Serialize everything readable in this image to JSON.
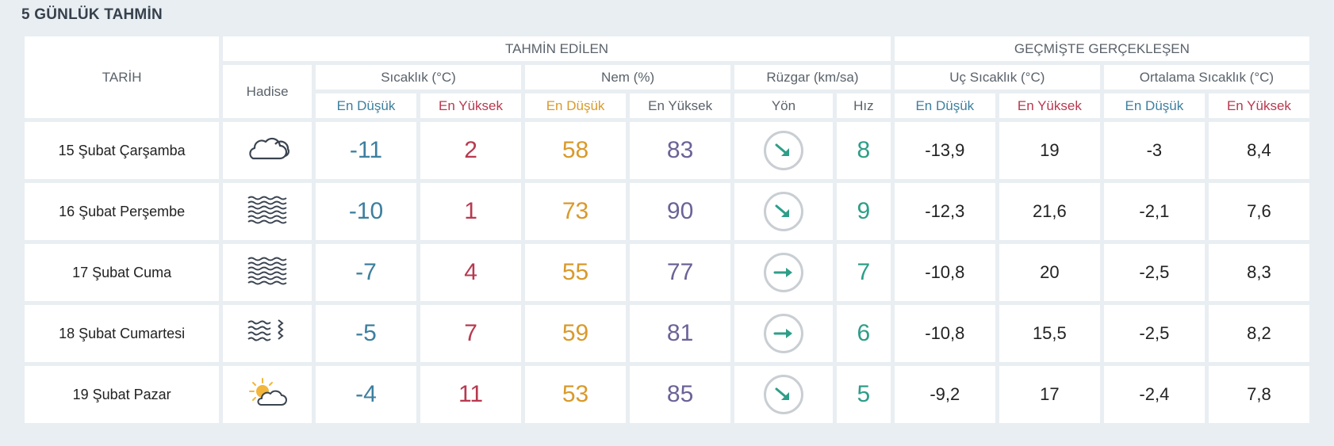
{
  "page_title": "5 GÜNLÜK TAHMİN",
  "headers": {
    "tarih": "TARİH",
    "hadise": "Hadise",
    "forecast_group": "TAHMİN EDİLEN",
    "past_group": "GEÇMİŞTE GERÇEKLEŞEN",
    "sicaklik": "Sıcaklık (°C)",
    "nem": "Nem (%)",
    "ruzgar": "Rüzgar (km/sa)",
    "uc_sicaklik": "Uç Sıcaklık (°C)",
    "ort_sicaklik": "Ortalama Sıcaklık (°C)",
    "en_dusuk": "En Düşük",
    "en_yuksek": "En Yüksek",
    "yon": "Yön",
    "hiz": "Hız"
  },
  "colors": {
    "min": "#3d7f9e",
    "max": "#b8394f",
    "hum_min": "#d99a2b",
    "hum_max": "#6b6397",
    "wind": "#2e9e89"
  },
  "rows": [
    {
      "date": "15 Şubat Çarşamba",
      "icon": "cloud-icon",
      "temp_min": "-11",
      "temp_max": "2",
      "hum_min": "58",
      "hum_max": "83",
      "wind_dir": "south-east-arrow",
      "wind_speed": "8",
      "extreme_min": "-13,9",
      "extreme_max": "19",
      "avg_min": "-3",
      "avg_max": "8,4"
    },
    {
      "date": "16 Şubat Perşembe",
      "icon": "fog-icon",
      "temp_min": "-10",
      "temp_max": "1",
      "hum_min": "73",
      "hum_max": "90",
      "wind_dir": "south-east-arrow",
      "wind_speed": "9",
      "extreme_min": "-12,3",
      "extreme_max": "21,6",
      "avg_min": "-2,1",
      "avg_max": "7,6"
    },
    {
      "date": "17 Şubat Cuma",
      "icon": "fog-icon",
      "temp_min": "-7",
      "temp_max": "4",
      "hum_min": "55",
      "hum_max": "77",
      "wind_dir": "east-arrow",
      "wind_speed": "7",
      "extreme_min": "-10,8",
      "extreme_max": "20",
      "avg_min": "-2,5",
      "avg_max": "8,3"
    },
    {
      "date": "18 Şubat Cumartesi",
      "icon": "fog-wind-icon",
      "temp_min": "-5",
      "temp_max": "7",
      "hum_min": "59",
      "hum_max": "81",
      "wind_dir": "east-arrow",
      "wind_speed": "6",
      "extreme_min": "-10,8",
      "extreme_max": "15,5",
      "avg_min": "-2,5",
      "avg_max": "8,2"
    },
    {
      "date": "19 Şubat Pazar",
      "icon": "partly-cloudy-icon",
      "temp_min": "-4",
      "temp_max": "11",
      "hum_min": "53",
      "hum_max": "85",
      "wind_dir": "south-east-arrow",
      "wind_speed": "5",
      "extreme_min": "-9,2",
      "extreme_max": "17",
      "avg_min": "-2,4",
      "avg_max": "7,8"
    }
  ]
}
